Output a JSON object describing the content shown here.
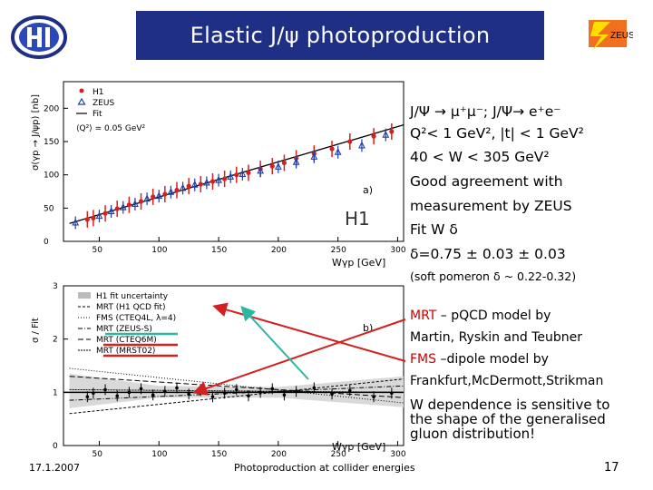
{
  "slide": {
    "title": "Elastic J/ψ photoproduction",
    "date": "17.1.2007",
    "footer": "Photoproduction at collider energies",
    "page": "17"
  },
  "logos": {
    "zeus_text": "ZEUS"
  },
  "plot_a": {
    "ylabel": "σ(γp → J/ψp) [nb]",
    "xlabel": "Wγp [GeV]",
    "panel": "a)",
    "watermark": "H1",
    "legend": [
      "H1",
      "ZEUS",
      "Fit",
      "⟨Q²⟩ = 0.05 GeV²"
    ],
    "xticks": [
      "50",
      "100",
      "150",
      "200",
      "250",
      "300"
    ],
    "yticks": [
      "0",
      "50",
      "100",
      "150",
      "200"
    ]
  },
  "plot_b": {
    "ylabel": "σ / Fit",
    "xlabel": "Wγp [GeV]",
    "panel": "b)",
    "legend": [
      "H1 fit uncertainty",
      "MRT (H1 QCD fit)",
      "FMS (CTEQ4L, λ=4)",
      "MRT (ZEUS-S)",
      "MRT (CTEQ6M)",
      "MRT (MRST02)"
    ],
    "xticks": [
      "50",
      "100",
      "150",
      "200",
      "250",
      "300"
    ],
    "yticks": [
      "0",
      "1",
      "2",
      "3"
    ]
  },
  "chart_data": [
    {
      "type": "scatter",
      "xlabel": "Wγp [GeV]",
      "ylabel": "σ(γp → J/ψp) [nb]",
      "xlim": [
        20,
        305
      ],
      "ylim": [
        0,
        240
      ],
      "series": [
        {
          "name": "H1",
          "x": [
            40,
            45,
            55,
            65,
            75,
            85,
            95,
            105,
            115,
            125,
            135,
            145,
            155,
            165,
            175,
            185,
            195,
            205,
            215,
            230,
            245,
            260,
            280,
            295
          ],
          "y": [
            33,
            35,
            42,
            49,
            55,
            60,
            67,
            71,
            77,
            83,
            86,
            90,
            94,
            100,
            103,
            109,
            113,
            118,
            125,
            132,
            139,
            150,
            158,
            165
          ]
        },
        {
          "name": "ZEUS",
          "x": [
            30,
            50,
            60,
            70,
            80,
            90,
            100,
            110,
            120,
            130,
            140,
            150,
            160,
            170,
            185,
            200,
            215,
            230,
            250,
            270,
            290
          ],
          "y": [
            28,
            38,
            45,
            51,
            56,
            64,
            68,
            74,
            80,
            85,
            88,
            92,
            97,
            101,
            106,
            112,
            119,
            127,
            134,
            144,
            160
          ]
        },
        {
          "name": "Fit",
          "x": [
            25,
            305
          ],
          "y": [
            27,
            175
          ]
        }
      ]
    },
    {
      "type": "line",
      "xlabel": "Wγp [GeV]",
      "ylabel": "σ / Fit",
      "xlim": [
        20,
        305
      ],
      "ylim": [
        0,
        3
      ],
      "series": [
        {
          "name": "MRT (H1 QCD fit)",
          "x": [
            25,
            305
          ],
          "y": [
            0.6,
            1.25
          ]
        },
        {
          "name": "FMS (CTEQ4L, λ=4)",
          "x": [
            25,
            305
          ],
          "y": [
            1.45,
            0.8
          ]
        },
        {
          "name": "MRT (ZEUS-S)",
          "x": [
            25,
            305
          ],
          "y": [
            0.85,
            1.12
          ]
        },
        {
          "name": "MRT (CTEQ6M)",
          "x": [
            25,
            305
          ],
          "y": [
            1.3,
            0.9
          ]
        },
        {
          "name": "MRT (MRST02)",
          "x": [
            25,
            305
          ],
          "y": [
            1.05,
            1.0
          ]
        }
      ]
    }
  ],
  "notes": [
    {
      "text": "J/Ψ → μ⁺μ⁻; J/Ψ→ e⁺e⁻",
      "style": "big"
    },
    {
      "text": "Q²< 1 GeV², |t| < 1 GeV²",
      "style": "big"
    },
    {
      "text": "40 < W < 305 GeV²",
      "style": "big"
    },
    {
      "text": "Good agreement with",
      "style": "big"
    },
    {
      "text": "measurement by ZEUS",
      "style": "big"
    },
    {
      "text": "Fit W δ",
      "style": "big"
    },
    {
      "text": "δ=0.75 ± 0.03 ±  0.03",
      "style": "big"
    },
    {
      "text": "(soft pomeron δ ~ 0.22-0.32)",
      "style": "small"
    }
  ],
  "models": {
    "mrt_label": "MRT",
    "mrt_desc": " – pQCD model by",
    "mrt_authors": "Martin, Ryskin and Teubner",
    "fms_label": "FMS",
    "fms_desc": " –dipole model by",
    "fms_authors": "Frankfurt,McDermott,Strikman",
    "conclusion": [
      "W dependence is sensitive to",
      "the shape of the generalised",
      "gluon distribution!"
    ]
  }
}
